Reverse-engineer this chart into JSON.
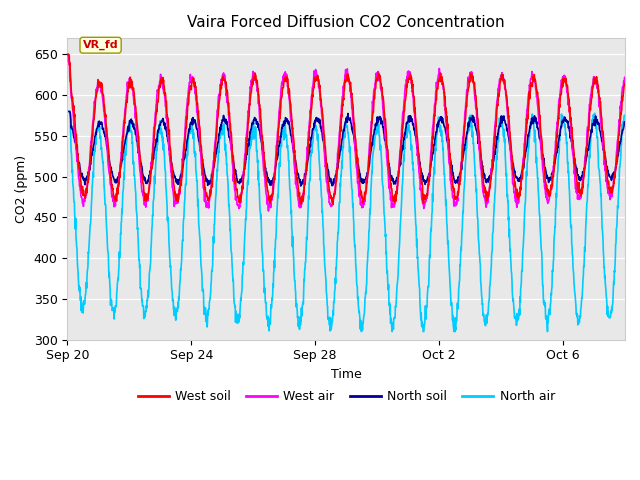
{
  "title": "Vaira Forced Diffusion CO2 Concentration",
  "xlabel": "Time",
  "ylabel": "CO2 (ppm)",
  "ylim": [
    300,
    670
  ],
  "yticks": [
    300,
    350,
    400,
    450,
    500,
    550,
    600,
    650
  ],
  "label_tag": "VR_fd",
  "label_tag_color": "#cc0000",
  "label_tag_bg": "#ffffdd",
  "fig_bg": "#ffffff",
  "plot_bg": "#e8e8e8",
  "west_soil_color": "#ff0000",
  "west_air_color": "#ff00ff",
  "north_soil_color": "#000099",
  "north_air_color": "#00ccff",
  "line_width": 1.2,
  "xtick_labels": [
    "Sep 20",
    "Sep 24",
    "Sep 28",
    "Oct 2",
    "Oct 6"
  ],
  "xtick_positions": [
    0,
    4,
    8,
    12,
    16
  ],
  "n_days": 18,
  "points_per_day": 96
}
